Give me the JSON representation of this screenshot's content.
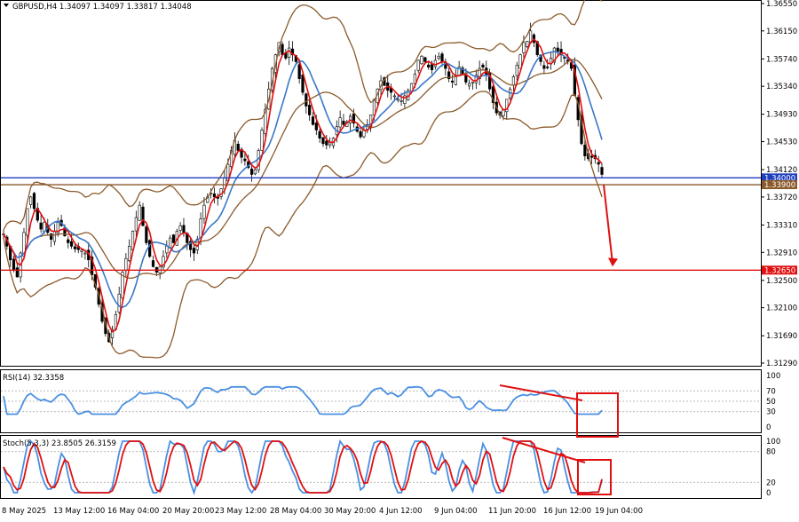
{
  "chart_data": [
    {
      "type": "candlestick",
      "title": "GBPUSD,H4  1.34097 1.34097 1.33817 1.34048",
      "symbol": "GBPUSD,H4",
      "last_ohlc": {
        "open": 1.34097,
        "high": 1.34097,
        "low": 1.33817,
        "close": 1.34048
      },
      "y_ticks": [
        "1.36550",
        "1.36150",
        "1.35740",
        "1.35340",
        "1.34930",
        "1.34530",
        "1.34120",
        "1.33720",
        "1.33310",
        "1.32910",
        "1.32500",
        "1.32100",
        "1.31690",
        "1.31290"
      ],
      "ylim": [
        1.3129,
        1.3655
      ],
      "x_ticks": [
        "8 May 2025",
        "13 May 12:00",
        "16 May 04:00",
        "20 May 20:00",
        "23 May 12:00",
        "28 May 04:00",
        "30 May 20:00",
        "4 Jun 12:00",
        "9 Jun 04:00",
        "11 Jun 20:00",
        "16 Jun 12:00",
        "19 Jun 04:00"
      ],
      "price_labels": [
        {
          "text": "1.34000",
          "value": 1.34,
          "color": "#1f3fbf"
        },
        {
          "text": "1.33900",
          "value": 1.339,
          "color": "#8b5a2b"
        },
        {
          "text": "1.32650",
          "value": 1.3265,
          "color": "#e01010"
        }
      ],
      "horizontal_levels": [
        {
          "value": 1.34,
          "color": "#1f3fbf"
        },
        {
          "value": 1.339,
          "color": "#8b5a2b"
        },
        {
          "value": 1.3265,
          "color": "#e01010"
        }
      ],
      "close_series": [
        1.3318,
        1.33,
        1.328,
        1.3265,
        1.3255,
        1.329,
        1.332,
        1.3355,
        1.3372,
        1.3355,
        1.3338,
        1.3325,
        1.3335,
        1.332,
        1.331,
        1.3322,
        1.3335,
        1.333,
        1.3315,
        1.3305,
        1.33,
        1.3296,
        1.3295,
        1.3294,
        1.329,
        1.328,
        1.3258,
        1.324,
        1.3215,
        1.319,
        1.3172,
        1.316,
        1.3178,
        1.32,
        1.323,
        1.3262,
        1.3282,
        1.33,
        1.3322,
        1.3342,
        1.336,
        1.333,
        1.3305,
        1.3285,
        1.327,
        1.3262,
        1.327,
        1.3285,
        1.33,
        1.3312,
        1.3305,
        1.3322,
        1.333,
        1.332,
        1.3305,
        1.3295,
        1.329,
        1.331,
        1.334,
        1.336,
        1.3372,
        1.3378,
        1.3372,
        1.337,
        1.3384,
        1.34,
        1.342,
        1.344,
        1.3455,
        1.344,
        1.343,
        1.3425,
        1.3415,
        1.3405,
        1.3412,
        1.344,
        1.347,
        1.35,
        1.353,
        1.356,
        1.358,
        1.3598,
        1.358,
        1.3575,
        1.359,
        1.358,
        1.357,
        1.3545,
        1.3525,
        1.3505,
        1.3492,
        1.3478,
        1.347,
        1.3458,
        1.345,
        1.3448,
        1.3452,
        1.3458,
        1.3475,
        1.3488,
        1.3478,
        1.3482,
        1.349,
        1.348,
        1.3468,
        1.346,
        1.347,
        1.3478,
        1.3492,
        1.3515,
        1.353,
        1.3542,
        1.3535,
        1.3528,
        1.3525,
        1.352,
        1.3515,
        1.3513,
        1.352,
        1.3528,
        1.3538,
        1.3552,
        1.3572,
        1.3578,
        1.357,
        1.3562,
        1.3558,
        1.3572,
        1.3578,
        1.357,
        1.356,
        1.3545,
        1.354,
        1.355,
        1.3562,
        1.3552,
        1.354,
        1.3538,
        1.354,
        1.355,
        1.356,
        1.3562,
        1.355,
        1.353,
        1.351,
        1.3495,
        1.3492,
        1.35,
        1.3515,
        1.353,
        1.3548,
        1.3565,
        1.358,
        1.3598,
        1.36,
        1.3615,
        1.3598,
        1.358,
        1.357,
        1.356,
        1.3562,
        1.3575,
        1.359,
        1.3585,
        1.358,
        1.3575,
        1.357,
        1.356,
        1.352,
        1.3485,
        1.345,
        1.3432,
        1.3428,
        1.343,
        1.3428,
        1.342,
        1.3405
      ],
      "indicators": [
        "Bollinger Bands (brown)",
        "Moving average (red)",
        "Moving average (blue)"
      ],
      "annotation": "Red arrow pointing down to 1.32650"
    },
    {
      "type": "line",
      "title": "RSI(14) 32.3358",
      "value": 32.3358,
      "ylim": [
        0,
        100
      ],
      "y_ticks": [
        "100",
        "70",
        "50",
        "30",
        "0"
      ],
      "annotation": "Divergence line with red box"
    },
    {
      "type": "line",
      "title": "Stoch(5,3,3) 23.8505 26.3159",
      "main": 23.8505,
      "signal": 26.3159,
      "ylim": [
        0,
        100
      ],
      "y_ticks": [
        "100",
        "80",
        "20",
        "0"
      ],
      "annotation": "Divergence line with red box"
    }
  ],
  "colors": {
    "candle": "#000000",
    "bollinger": "#8b5a2b",
    "ma_red": "#e01010",
    "ma_blue": "#3a78c9",
    "rsi": "#4a90e2",
    "stoch_main": "#4a90e2",
    "stoch_signal": "#e01010",
    "box": "#e01010"
  }
}
